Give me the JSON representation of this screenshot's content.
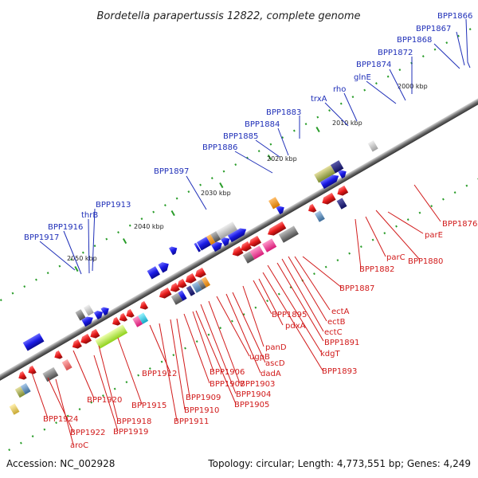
{
  "header": {
    "title": "Bordetella parapertussis 12822, complete genome"
  },
  "footer": {
    "accession": "Accession: NC_002928",
    "summary": "Topology: circular; Length: 4,773,551 bp; Genes: 4,249"
  },
  "scale_labels": [
    "2000 kbp",
    "2010 kbp",
    "2020 kbp",
    "2030 kbp",
    "2040 kbp",
    "2050 kbp"
  ],
  "genes_top": [
    "BPP1866",
    "BPP1867",
    "BPP1868",
    "BPP1872",
    "BPP1874",
    "glnE",
    "rho",
    "trxA",
    "BPP1883",
    "BPP1884",
    "BPP1885",
    "BPP1886",
    "BPP1897",
    "BPP1913",
    "thrB",
    "BPP1916",
    "BPP1917"
  ],
  "genes_bottom": [
    "BPP1876",
    "parE",
    "BPP1880",
    "parC",
    "BPP1882",
    "BPP1887",
    "ectA",
    "ectB",
    "ectC",
    "BPP1891",
    "kdgT",
    "BPP1893",
    "BPP1895",
    "pdxA",
    "panD",
    "ascD",
    "dadA",
    "ugpB",
    "BPP1903",
    "BPP1904",
    "BPP1905",
    "BPP1906",
    "BPP1907",
    "BPP1909",
    "BPP1910",
    "BPP1911",
    "BPP1912",
    "BPP1915",
    "BPP1918",
    "BPP1919",
    "BPP1920",
    "BPP1922",
    "BPP1924",
    "aroC"
  ],
  "colors": {
    "forward_strand": "#1a1ae6",
    "reverse_strand": "#e61a1a",
    "backbone": "#808080",
    "top_label": "#1f2fb8",
    "bottom_label": "#d11a1a",
    "tick": "#2a9d2a"
  }
}
